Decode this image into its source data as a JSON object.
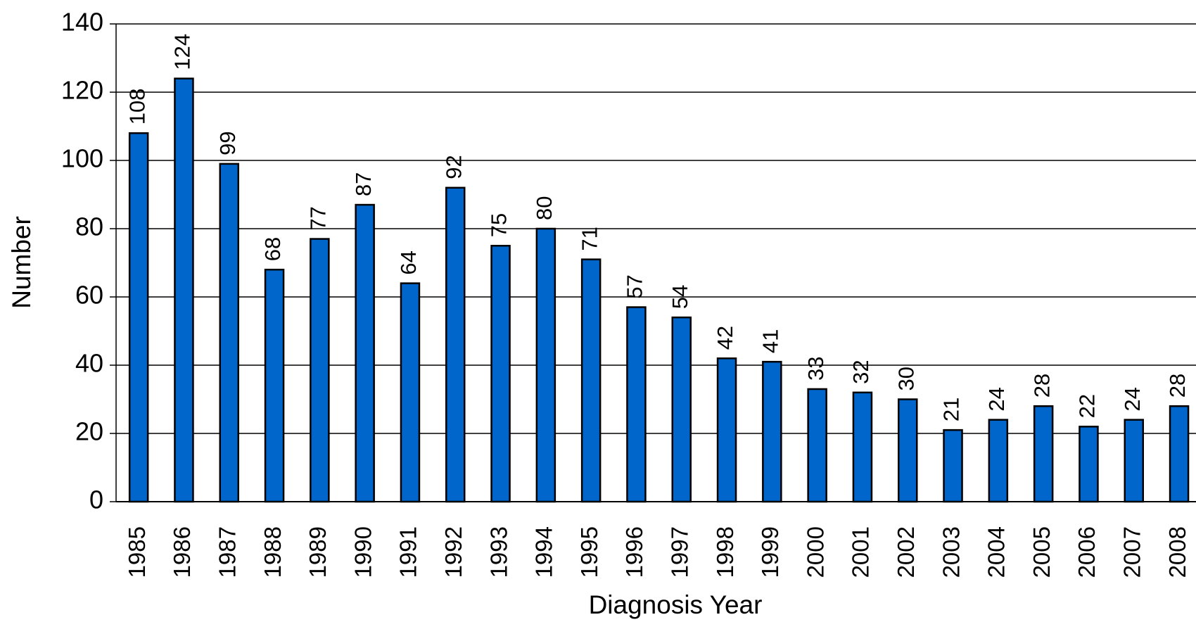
{
  "chart_data": {
    "type": "bar",
    "x_label": "Diagnosis Year",
    "y_label": "Number",
    "categories": [
      "1985",
      "1986",
      "1987",
      "1988",
      "1989",
      "1990",
      "1991",
      "1992",
      "1993",
      "1994",
      "1995",
      "1996",
      "1997",
      "1998",
      "1999",
      "2000",
      "2001",
      "2002",
      "2003",
      "2004",
      "2005",
      "2006",
      "2007",
      "2008"
    ],
    "values": [
      108,
      124,
      99,
      68,
      77,
      87,
      64,
      92,
      75,
      80,
      71,
      57,
      54,
      42,
      41,
      33,
      32,
      30,
      21,
      24,
      28,
      22,
      24,
      28
    ],
    "color": "#0066cc",
    "ylim": [
      0,
      140
    ],
    "yticks": [
      0,
      20,
      40,
      60,
      80,
      100,
      120,
      140
    ],
    "grid": true
  }
}
